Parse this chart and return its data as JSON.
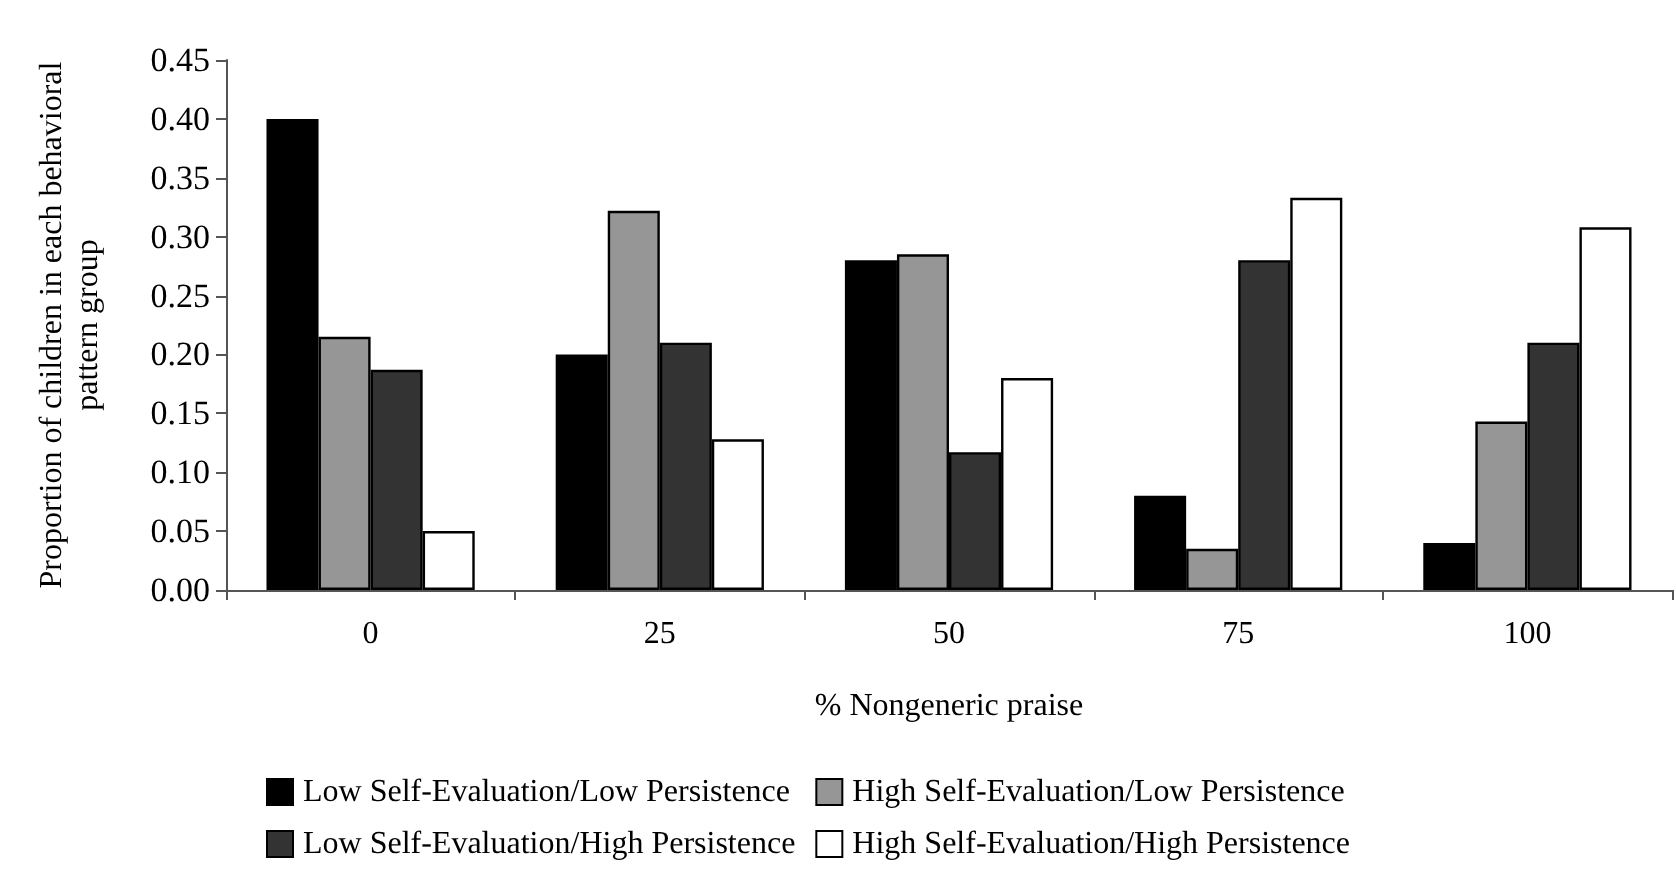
{
  "chart_data": {
    "type": "bar",
    "xlabel": "% Nongeneric praise",
    "ylabel": "Proportion of children in each behavioral pattern group",
    "categories": [
      "0",
      "25",
      "50",
      "75",
      "100"
    ],
    "series": [
      {
        "name": "Low Self-Evaluation/Low Persistence",
        "color": "#000000",
        "values": [
          0.4,
          0.2,
          0.28,
          0.08,
          0.04
        ]
      },
      {
        "name": "High Self-Evaluation/Low Persistence",
        "color": "#969696",
        "values": [
          0.215,
          0.322,
          0.285,
          0.035,
          0.143
        ]
      },
      {
        "name": "Low Self-Evaluation/High Persistence",
        "color": "#333333",
        "values": [
          0.187,
          0.21,
          0.117,
          0.28,
          0.21
        ]
      },
      {
        "name": "High Self-Evaluation/High Persistence",
        "color": "#ffffff",
        "values": [
          0.05,
          0.128,
          0.18,
          0.333,
          0.308
        ]
      }
    ],
    "ylim": [
      0,
      0.45
    ],
    "yticks": [
      {
        "value": 0,
        "label": "0.00"
      },
      {
        "value": 0.05,
        "label": "0.05"
      },
      {
        "value": 0.1,
        "label": "0.10"
      },
      {
        "value": 0.15,
        "label": "0.15"
      },
      {
        "value": 0.2,
        "label": "0.20"
      },
      {
        "value": 0.25,
        "label": "0.25"
      },
      {
        "value": 0.3,
        "label": "0.30"
      },
      {
        "value": 0.35,
        "label": "0.35"
      },
      {
        "value": 0.4,
        "label": "0.40"
      },
      {
        "value": 0.45,
        "label": "0.45"
      }
    ],
    "grid": false,
    "legend": "bottom"
  }
}
